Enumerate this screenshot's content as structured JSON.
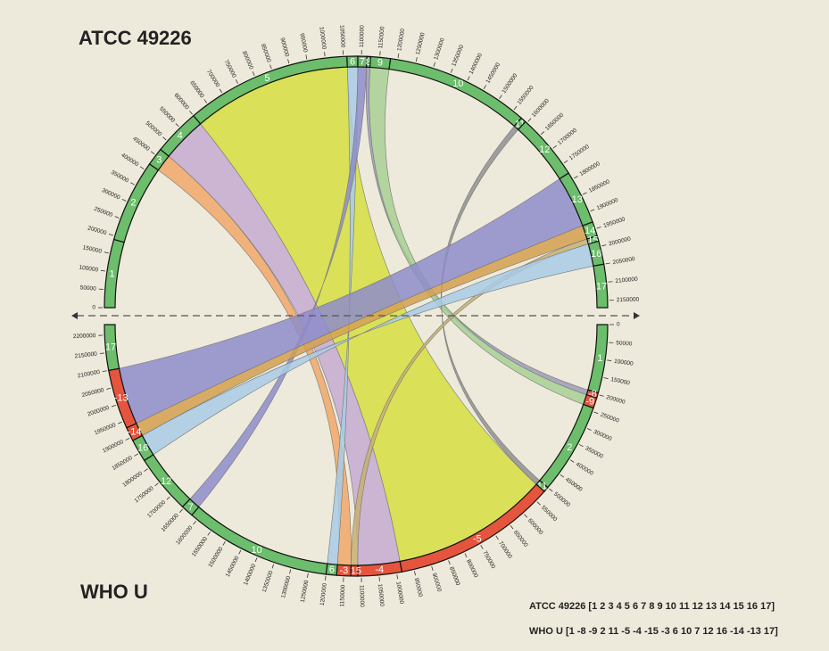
{
  "top_genome": {
    "title": "ATCC 49226",
    "range": [
      0,
      2170000
    ],
    "ticks": [
      0,
      50000,
      100000,
      150000,
      200000,
      250000,
      300000,
      350000,
      400000,
      450000,
      500000,
      550000,
      600000,
      650000,
      700000,
      750000,
      800000,
      850000,
      900000,
      950000,
      1000000,
      1050000,
      1100000,
      1150000,
      1200000,
      1250000,
      1300000,
      1350000,
      1400000,
      1450000,
      1500000,
      1550000,
      1600000,
      1650000,
      1700000,
      1750000,
      1800000,
      1850000,
      1900000,
      1950000,
      2000000,
      2050000,
      2100000,
      2150000
    ],
    "segments": [
      {
        "label": "1",
        "length": 190000,
        "link_color": null
      },
      {
        "label": "2",
        "length": 230000,
        "link_color": null
      },
      {
        "label": "3",
        "length": 50000,
        "link_color": "#f0a868"
      },
      {
        "label": "4",
        "length": 130000,
        "link_color": "#c4abd0"
      },
      {
        "label": "5",
        "length": 460000,
        "link_color": "#d6de40"
      },
      {
        "label": "6",
        "length": 30000,
        "link_color": "#a8cbe6"
      },
      {
        "label": "7",
        "length": 25000,
        "link_color": "#8e8cca"
      },
      {
        "label": "8",
        "length": 10000,
        "link_color": "#9c9cb8"
      },
      {
        "label": "9",
        "length": 55000,
        "link_color": "#a8d094"
      },
      {
        "label": "10",
        "length": 400000,
        "link_color": null
      },
      {
        "label": "11",
        "length": 15000,
        "link_color": "#909090"
      },
      {
        "label": "12",
        "length": 185000,
        "link_color": null
      },
      {
        "label": "13",
        "length": 150000,
        "link_color": "#8e8cca"
      },
      {
        "label": "14",
        "length": 40000,
        "link_color": "#d4a050"
      },
      {
        "label": "15",
        "length": 15000,
        "link_color": "#c8b070"
      },
      {
        "label": "16",
        "length": 65000,
        "link_color": "#a8cbe6"
      },
      {
        "label": "17",
        "length": 120000,
        "link_color": null
      }
    ]
  },
  "bottom_genome": {
    "title": "WHO U",
    "range": [
      0,
      2230000
    ],
    "ticks": [
      0,
      50000,
      100000,
      150000,
      200000,
      250000,
      300000,
      350000,
      400000,
      450000,
      500000,
      550000,
      600000,
      650000,
      700000,
      750000,
      800000,
      850000,
      900000,
      950000,
      1000000,
      1050000,
      1100000,
      1150000,
      1200000,
      1250000,
      1300000,
      1350000,
      1400000,
      1450000,
      1500000,
      1550000,
      1600000,
      1650000,
      1700000,
      1750000,
      1800000,
      1850000,
      1900000,
      1950000,
      2000000,
      2050000,
      2100000,
      2150000,
      2200000
    ],
    "segments": [
      {
        "label": "1",
        "length": 195000
      },
      {
        "label": "-8",
        "length": 15000
      },
      {
        "label": "-9",
        "length": 30000
      },
      {
        "label": "2",
        "length": 260000
      },
      {
        "label": "11",
        "length": 15000
      },
      {
        "label": "-5",
        "length": 470000
      },
      {
        "label": "-4",
        "length": 125000
      },
      {
        "label": "-15",
        "length": 20000
      },
      {
        "label": "-3",
        "length": 40000
      },
      {
        "label": "6",
        "length": 30000
      },
      {
        "label": "10",
        "length": 420000
      },
      {
        "label": "7",
        "length": 35000
      },
      {
        "label": "12",
        "length": 170000
      },
      {
        "label": "16",
        "length": 65000
      },
      {
        "label": "-14",
        "length": 40000
      },
      {
        "label": "-13",
        "length": 170000
      },
      {
        "label": "17",
        "length": 130000
      }
    ]
  },
  "legend": [
    "ATCC 49226 [1 2 3 4 5 6 7 8 9 10 11 12 13 14 15 16 17]",
    "WHO U [1 -8 -9 2 11 -5 -4 -15 -3 6 10 7 12 16 -14 -13 17]"
  ],
  "forward_color": "#6cbd6c",
  "reverse_color": "#e5553e"
}
